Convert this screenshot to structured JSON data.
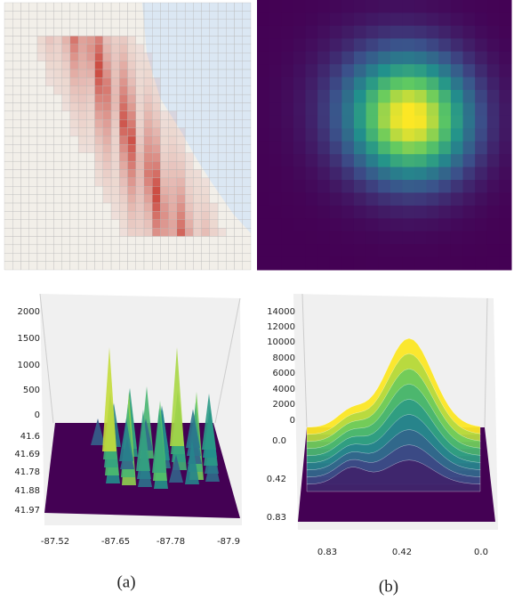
{
  "panels": [
    {
      "caption": "(a)",
      "z_ticks": [
        "2000",
        "1500",
        "1000",
        "500",
        "0"
      ],
      "y_ticks": [
        "41.6",
        "41.69",
        "41.78",
        "41.88",
        "41.97"
      ],
      "x_ticks": [
        "-87.52",
        "-87.65",
        "-87.78",
        "-87.9"
      ]
    },
    {
      "caption": "(b)",
      "z_ticks": [
        "14000",
        "12000",
        "10000",
        "8000",
        "6000",
        "4000",
        "2000",
        "0"
      ],
      "y_ticks": [
        "0.0",
        "0.42",
        "0.83"
      ],
      "x_ticks": [
        "0.83",
        "0.42",
        "0.0"
      ]
    }
  ]
}
